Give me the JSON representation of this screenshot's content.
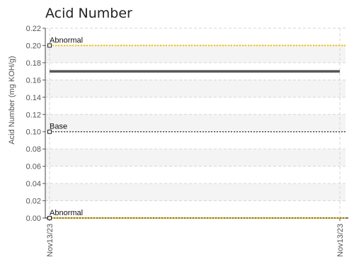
{
  "chart_data": {
    "type": "line",
    "title": "Acid Number",
    "ylabel": "Acid Number (mg KOH/g)",
    "xlabel": "",
    "ylim": [
      0,
      0.22
    ],
    "yticks": [
      "0.00",
      "0.02",
      "0.04",
      "0.06",
      "0.08",
      "0.10",
      "0.12",
      "0.14",
      "0.16",
      "0.18",
      "0.20",
      "0.22"
    ],
    "x_categories": [
      "Nov13/23",
      "Nov13/23"
    ],
    "series": [
      {
        "values": [
          0.17,
          0.17
        ],
        "color": "#555555"
      }
    ],
    "reference_lines": [
      {
        "name": "Abnormal",
        "value": 0.2,
        "color": "#f2c200",
        "style": "dotted"
      },
      {
        "name": "Base",
        "value": 0.1,
        "color": "#333333",
        "style": "dotted"
      },
      {
        "name": "Abnormal",
        "value": 0.0,
        "color": "#f2c200",
        "style": "dotted"
      }
    ],
    "grid": true
  }
}
